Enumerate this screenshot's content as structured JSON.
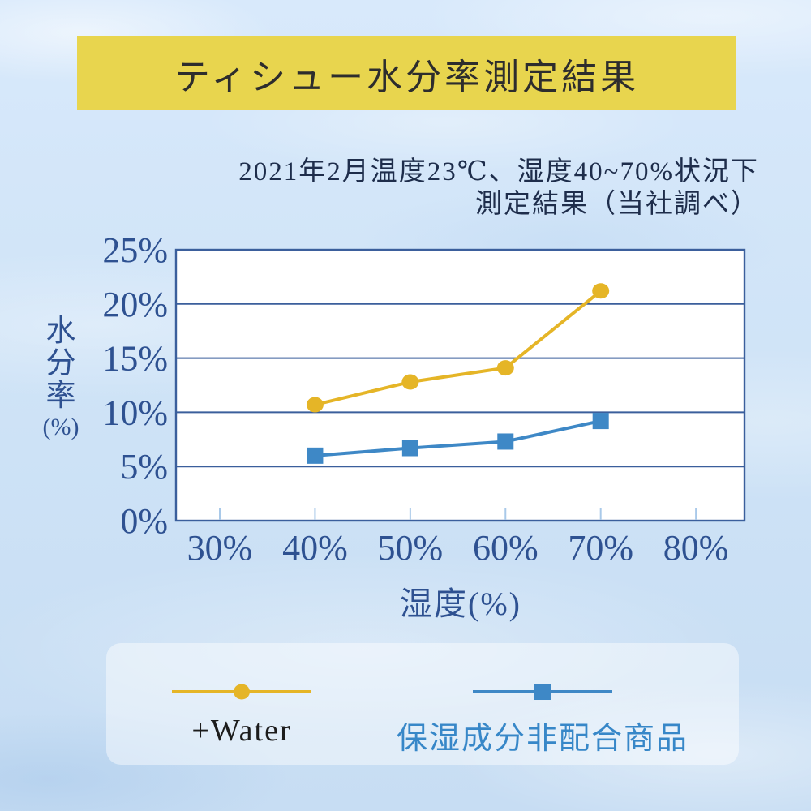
{
  "header": {
    "title": "ティシュー水分率測定結果",
    "subtitle_line1": "2021年2月温度23℃、湿度40~70%状況下",
    "subtitle_line2": "測定結果（当社調べ）"
  },
  "colors": {
    "background": "#cfe3f6",
    "banner_bg": "#e8d54e",
    "title_text": "#2d2d2d",
    "subtitle_text": "#1e2d4b",
    "plot_bg": "#ffffff",
    "axis": "#3b5f9c",
    "tick": "#a9c9e9",
    "tick_label": "#2e5191",
    "water_series": "#e5b527",
    "plain_series": "#3e88c6",
    "legend_panel": "rgba(255,255,255,0.45)",
    "legend_label_water": "#1c1c1c",
    "legend_label_plain": "#3787c8"
  },
  "chart_data": {
    "type": "line",
    "title": "ティシュー水分率測定結果",
    "xlabel": "湿度(%)",
    "ylabel": "水分率(%)",
    "ylabel_stack": "水分率",
    "ylabel_unit": "(%)",
    "x": [
      40,
      50,
      60,
      70
    ],
    "x_tick_values": [
      30,
      40,
      50,
      60,
      70,
      80
    ],
    "x_tick_labels": [
      "30%",
      "40%",
      "50%",
      "60%",
      "70%",
      "80%"
    ],
    "y_tick_values": [
      0,
      5,
      10,
      15,
      20,
      25
    ],
    "y_tick_labels": [
      "0%",
      "5%",
      "10%",
      "15%",
      "20%",
      "25%"
    ],
    "xlim": [
      25.4,
      85.1
    ],
    "ylim": [
      0,
      25
    ],
    "grid": "horizontal",
    "legend_position": "bottom",
    "series": [
      {
        "name": "+Water",
        "marker": "circle",
        "color": "#e5b527",
        "values": [
          10.7,
          12.8,
          14.1,
          21.2
        ]
      },
      {
        "name": "保湿成分非配合商品",
        "marker": "square",
        "color": "#3e88c6",
        "values": [
          6.0,
          6.7,
          7.3,
          9.2
        ]
      }
    ]
  }
}
